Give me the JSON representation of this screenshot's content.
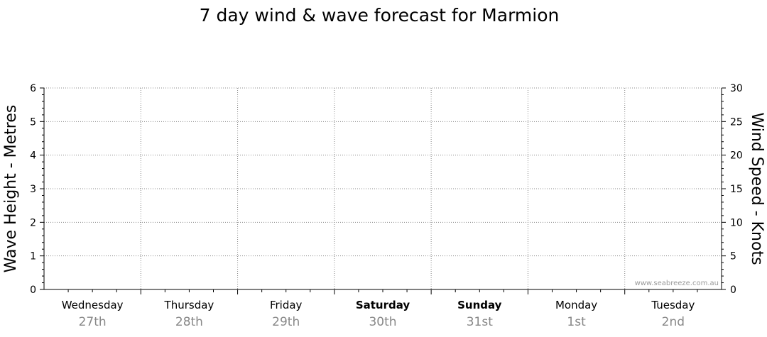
{
  "chart_data": {
    "type": "line",
    "title": "7 day wind & wave forecast for Marmion",
    "y_left": {
      "label": "Wave Height - Metres",
      "range": [
        0,
        6
      ],
      "ticks": [
        0,
        1,
        2,
        3,
        4,
        5,
        6
      ]
    },
    "y_right": {
      "label": "Wind Speed - Knots",
      "range": [
        0,
        30
      ],
      "ticks": [
        0,
        5,
        10,
        15,
        20,
        25,
        30
      ]
    },
    "grid": true,
    "days": [
      {
        "name": "Wednesday",
        "date": "27th",
        "bold": false
      },
      {
        "name": "Thursday",
        "date": "28th",
        "bold": false
      },
      {
        "name": "Friday",
        "date": "29th",
        "bold": false
      },
      {
        "name": "Saturday",
        "date": "30th",
        "bold": true
      },
      {
        "name": "Sunday",
        "date": "31st",
        "bold": true
      },
      {
        "name": "Monday",
        "date": "1st",
        "bold": false
      },
      {
        "name": "Tuesday",
        "date": "2nd",
        "bold": false
      }
    ],
    "series": []
  },
  "watermark": "www.seabreeze.com.au"
}
